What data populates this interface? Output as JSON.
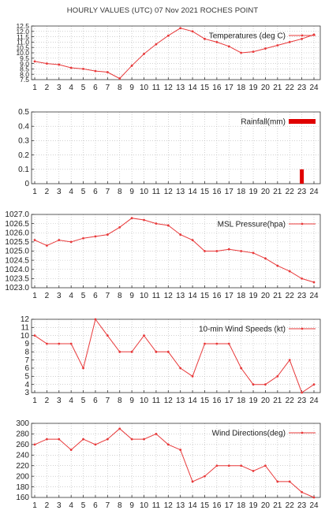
{
  "page_title": "HOURLY VALUES (UTC) 07 Nov 2021  ROCHES POINT",
  "colors": {
    "series": "#e8393a",
    "bar": "#e00000",
    "axis": "#333333",
    "grid": "#b5b5b5"
  },
  "chart_data": [
    {
      "type": "line",
      "legend": "Temperatures (deg C)",
      "x": [
        1,
        2,
        3,
        4,
        5,
        6,
        7,
        8,
        9,
        10,
        11,
        12,
        13,
        14,
        15,
        16,
        17,
        18,
        19,
        20,
        21,
        22,
        23,
        24
      ],
      "series": [
        {
          "name": "Temperatures (deg C)",
          "values": [
            9.2,
            9.0,
            8.9,
            8.6,
            8.5,
            8.3,
            8.2,
            7.6,
            8.8,
            9.9,
            10.8,
            11.6,
            12.3,
            12.0,
            11.3,
            11.0,
            10.6,
            10.0,
            10.1,
            10.4,
            10.7,
            11.0,
            11.3,
            11.7
          ]
        }
      ],
      "ylim": [
        7.5,
        12.5
      ],
      "yticks": [
        7.5,
        8,
        8.5,
        9,
        9.5,
        10,
        10.5,
        11,
        11.5,
        12,
        12.5
      ],
      "yticklabels": [
        "7.5",
        "8.0",
        "8.5",
        "9.0",
        "9.5",
        "10.0",
        "10.5",
        "11.0",
        "11.5",
        "12.0",
        "12.5"
      ],
      "xticklabels": [
        "1",
        "2",
        "3",
        "4",
        "5",
        "6",
        "7",
        "8",
        "9",
        "10",
        "11",
        "12",
        "13",
        "14",
        "15",
        "16",
        "17",
        "18",
        "19",
        "20",
        "21",
        "22",
        "23",
        "24"
      ],
      "legend_position": "top-right",
      "grid": true
    },
    {
      "type": "bar",
      "legend": "Rainfall(mm)",
      "x": [
        1,
        2,
        3,
        4,
        5,
        6,
        7,
        8,
        9,
        10,
        11,
        12,
        13,
        14,
        15,
        16,
        17,
        18,
        19,
        20,
        21,
        22,
        23,
        24
      ],
      "series": [
        {
          "name": "Rainfall(mm)",
          "values": [
            0,
            0,
            0,
            0,
            0,
            0,
            0,
            0,
            0,
            0,
            0,
            0,
            0,
            0,
            0,
            0,
            0,
            0,
            0,
            0,
            0,
            0,
            0.1,
            0
          ]
        }
      ],
      "ylim": [
        0,
        0.5
      ],
      "yticks": [
        0,
        0.1,
        0.2,
        0.3,
        0.4,
        0.5
      ],
      "yticklabels": [
        "0",
        "0.1",
        "0.2",
        "0.3",
        "0.4",
        "0.5"
      ],
      "xticklabels": [
        "1",
        "2",
        "3",
        "4",
        "5",
        "6",
        "7",
        "8",
        "9",
        "10",
        "11",
        "12",
        "13",
        "14",
        "15",
        "16",
        "17",
        "18",
        "19",
        "20",
        "21",
        "22",
        "23",
        "24"
      ],
      "legend_position": "top-right",
      "grid": true
    },
    {
      "type": "line",
      "legend": "MSL Pressure(hpa)",
      "x": [
        1,
        2,
        3,
        4,
        5,
        6,
        7,
        8,
        9,
        10,
        11,
        12,
        13,
        14,
        15,
        16,
        17,
        18,
        19,
        20,
        21,
        22,
        23,
        24
      ],
      "series": [
        {
          "name": "MSL Pressure(hpa)",
          "values": [
            1025.6,
            1025.3,
            1025.6,
            1025.5,
            1025.7,
            1025.8,
            1025.9,
            1026.3,
            1026.8,
            1026.7,
            1026.5,
            1026.4,
            1025.9,
            1025.6,
            1025.0,
            1025.0,
            1025.1,
            1025.0,
            1024.9,
            1024.6,
            1024.2,
            1023.9,
            1023.5,
            1023.3
          ]
        }
      ],
      "ylim": [
        1023.0,
        1027.0
      ],
      "yticks": [
        1023.0,
        1023.5,
        1024.0,
        1024.5,
        1025.0,
        1025.5,
        1026.0,
        1026.5,
        1027.0
      ],
      "yticklabels": [
        "1023.0",
        "1023.5",
        "1024.0",
        "1024.5",
        "1025.0",
        "1025.5",
        "1026.0",
        "1026.5",
        "1027.0"
      ],
      "xticklabels": [
        "1",
        "2",
        "3",
        "4",
        "5",
        "6",
        "7",
        "8",
        "9",
        "10",
        "11",
        "12",
        "13",
        "14",
        "15",
        "16",
        "17",
        "18",
        "19",
        "20",
        "21",
        "22",
        "23",
        "24"
      ],
      "legend_position": "top-right",
      "grid": true
    },
    {
      "type": "line",
      "legend": "10-min Wind Speeds (kt)",
      "x": [
        1,
        2,
        3,
        4,
        5,
        6,
        7,
        8,
        9,
        10,
        11,
        12,
        13,
        14,
        15,
        16,
        17,
        18,
        19,
        20,
        21,
        22,
        23,
        24
      ],
      "series": [
        {
          "name": "10-min Wind Speeds (kt)",
          "values": [
            10,
            9,
            9,
            9,
            6,
            12,
            10,
            8,
            8,
            10,
            8,
            8,
            6,
            5,
            9,
            9,
            9,
            6,
            4,
            4,
            5,
            7,
            3,
            4
          ]
        }
      ],
      "ylim": [
        3,
        12
      ],
      "yticks": [
        3,
        4,
        5,
        6,
        7,
        8,
        9,
        10,
        11,
        12
      ],
      "yticklabels": [
        "3",
        "4",
        "5",
        "6",
        "7",
        "8",
        "9",
        "10",
        "11",
        "12"
      ],
      "xticklabels": [
        "1",
        "2",
        "3",
        "4",
        "5",
        "6",
        "7",
        "8",
        "9",
        "10",
        "11",
        "12",
        "13",
        "14",
        "15",
        "16",
        "17",
        "18",
        "19",
        "20",
        "21",
        "22",
        "23",
        "24"
      ],
      "legend_position": "top-right",
      "grid": true
    },
    {
      "type": "line",
      "legend": "Wind Directions(deg)",
      "x": [
        1,
        2,
        3,
        4,
        5,
        6,
        7,
        8,
        9,
        10,
        11,
        12,
        13,
        14,
        15,
        16,
        17,
        18,
        19,
        20,
        21,
        22,
        23,
        24
      ],
      "series": [
        {
          "name": "Wind Directions(deg)",
          "values": [
            260,
            270,
            270,
            250,
            270,
            260,
            270,
            290,
            270,
            270,
            280,
            260,
            250,
            190,
            200,
            220,
            220,
            220,
            210,
            220,
            190,
            190,
            170,
            160
          ]
        }
      ],
      "ylim": [
        160,
        300
      ],
      "yticks": [
        160,
        180,
        200,
        220,
        240,
        260,
        280,
        300
      ],
      "yticklabels": [
        "160",
        "180",
        "200",
        "220",
        "240",
        "260",
        "280",
        "300"
      ],
      "xticklabels": [
        "1",
        "2",
        "3",
        "4",
        "5",
        "6",
        "7",
        "8",
        "9",
        "10",
        "11",
        "12",
        "13",
        "14",
        "15",
        "16",
        "17",
        "18",
        "19",
        "20",
        "21",
        "22",
        "23",
        "24"
      ],
      "legend_position": "top-right",
      "grid": true
    }
  ]
}
